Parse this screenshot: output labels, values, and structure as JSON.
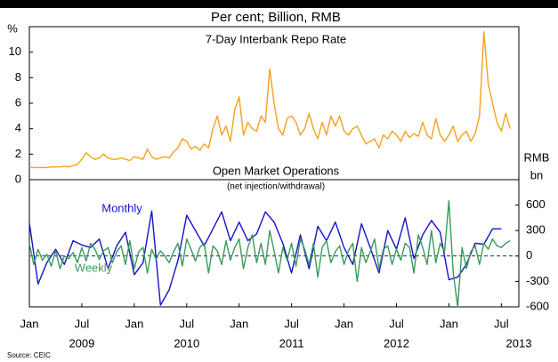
{
  "title": "Per cent; Billion, RMB",
  "source": "Source: CEIC",
  "chart_data": [
    {
      "type": "line",
      "title": "7-Day Interbank Repo Rate",
      "y_label": "%",
      "xlim": [
        0,
        56
      ],
      "ylim": [
        0,
        12
      ],
      "yticks": [
        0,
        2,
        4,
        6,
        8,
        10
      ],
      "color": "#f5a11f",
      "x": [
        0,
        0.5,
        1,
        1.5,
        2,
        2.5,
        3,
        3.5,
        4,
        4.5,
        5,
        5.5,
        6,
        6.5,
        7,
        7.5,
        8,
        8.5,
        9,
        9.5,
        10,
        10.5,
        11,
        11.5,
        12,
        12.5,
        13,
        13.5,
        14,
        14.5,
        15,
        15.5,
        16,
        16.5,
        17,
        17.5,
        18,
        18.5,
        19,
        19.5,
        20,
        20.5,
        21,
        21.5,
        22,
        22.5,
        23,
        23.5,
        24,
        24.5,
        25,
        25.5,
        26,
        26.5,
        27,
        27.5,
        28,
        28.5,
        29,
        29.5,
        30,
        30.5,
        31,
        31.5,
        32,
        32.5,
        33,
        33.5,
        34,
        34.5,
        35,
        35.5,
        36,
        36.5,
        37,
        37.5,
        38,
        38.5,
        39,
        39.5,
        40,
        40.5,
        41,
        41.5,
        42,
        42.5,
        43,
        43.5,
        44,
        44.5,
        45,
        45.5,
        46,
        46.5,
        47,
        47.5,
        48,
        48.5,
        49,
        49.5,
        50,
        50.5,
        51,
        51.5,
        52,
        52.5,
        53,
        53.5,
        54,
        54.5,
        55
      ],
      "values": [
        1.0,
        0.95,
        0.95,
        0.95,
        0.95,
        1.0,
        1.0,
        1.0,
        1.05,
        1.0,
        1.1,
        1.2,
        1.6,
        2.1,
        1.8,
        1.6,
        1.7,
        2.0,
        1.7,
        1.6,
        1.6,
        1.7,
        1.6,
        1.5,
        1.8,
        1.7,
        1.6,
        2.4,
        1.8,
        1.6,
        1.7,
        1.8,
        1.7,
        2.2,
        2.5,
        3.2,
        3.0,
        2.4,
        2.6,
        2.3,
        2.8,
        2.5,
        4.0,
        5.0,
        3.5,
        4.2,
        3.0,
        5.5,
        6.5,
        3.5,
        4.5,
        4.0,
        3.8,
        5.0,
        4.5,
        8.7,
        6.0,
        4.0,
        3.5,
        4.8,
        5.0,
        4.5,
        3.5,
        4.0,
        5.2,
        4.0,
        3.2,
        4.5,
        3.5,
        5.0,
        4.2,
        5.0,
        3.8,
        3.5,
        4.0,
        4.2,
        3.5,
        2.8,
        3.0,
        3.2,
        2.5,
        3.5,
        3.2,
        3.8,
        3.5,
        3.0,
        3.8,
        3.3,
        3.6,
        3.4,
        4.5,
        3.5,
        3.2,
        4.8,
        3.5,
        3.0,
        3.5,
        4.2,
        3.0,
        3.5,
        3.8,
        3.0,
        3.6,
        5.0,
        11.6,
        7.5,
        6.0,
        4.5,
        3.8,
        5.2,
        4.0
      ]
    },
    {
      "type": "line",
      "title": "Open Market Operations",
      "subtitle": "(net injection/withdrawal)",
      "y_label_lines": [
        "RMB",
        "bn"
      ],
      "xlim": [
        0,
        56
      ],
      "xticks": [
        {
          "value": 0,
          "label": "Jan"
        },
        {
          "value": 6,
          "label": "Jul"
        },
        {
          "value": 12,
          "label": "Jan"
        },
        {
          "value": 18,
          "label": "Jul"
        },
        {
          "value": 24,
          "label": "Jan"
        },
        {
          "value": 30,
          "label": "Jul"
        },
        {
          "value": 36,
          "label": "Jan"
        },
        {
          "value": 42,
          "label": "Jul"
        },
        {
          "value": 48,
          "label": "Jan"
        },
        {
          "value": 54,
          "label": "Jul"
        }
      ],
      "year_ticks": [
        {
          "value": 6,
          "label": "2009"
        },
        {
          "value": 18,
          "label": "2010"
        },
        {
          "value": 30,
          "label": "2011"
        },
        {
          "value": 42,
          "label": "2012"
        },
        {
          "value": 56,
          "label": "2013"
        }
      ],
      "ylim": [
        -600,
        900
      ],
      "yticks": [
        600,
        300,
        0,
        -300,
        -600
      ],
      "series": [
        {
          "name": "Monthly",
          "color": "#1414c8",
          "x": [
            0,
            1,
            2,
            3,
            4,
            5,
            6,
            7,
            8,
            9,
            10,
            11,
            12,
            13,
            14,
            15,
            16,
            17,
            18,
            19,
            20,
            21,
            22,
            23,
            24,
            25,
            26,
            27,
            28,
            29,
            30,
            31,
            32,
            33,
            34,
            35,
            36,
            37,
            38,
            39,
            40,
            41,
            42,
            43,
            44,
            45,
            46,
            47,
            48,
            49,
            50,
            51,
            52,
            53,
            54
          ],
          "values": [
            390,
            -330,
            -80,
            80,
            -100,
            180,
            130,
            100,
            200,
            -150,
            120,
            280,
            -220,
            -80,
            530,
            -580,
            -400,
            -50,
            480,
            300,
            120,
            320,
            520,
            180,
            400,
            180,
            260,
            520,
            400,
            150,
            -200,
            250,
            -150,
            350,
            180,
            400,
            100,
            -100,
            380,
            100,
            -200,
            300,
            80,
            450,
            -30,
            250,
            420,
            280,
            -280,
            -250,
            -100,
            150,
            140,
            320,
            320
          ]
        },
        {
          "name": "Weekly",
          "color": "#3a9a5a",
          "x": [
            0,
            0.5,
            1,
            1.5,
            2,
            2.5,
            3,
            3.5,
            4,
            4.5,
            5,
            5.5,
            6,
            6.5,
            7,
            7.5,
            8,
            8.5,
            9,
            9.5,
            10,
            10.5,
            11,
            11.5,
            12,
            12.5,
            13,
            13.5,
            14,
            14.5,
            15,
            15.5,
            16,
            16.5,
            17,
            17.5,
            18,
            18.5,
            19,
            19.5,
            20,
            20.5,
            21,
            21.5,
            22,
            22.5,
            23,
            23.5,
            24,
            24.5,
            25,
            25.5,
            26,
            26.5,
            27,
            27.5,
            28,
            28.5,
            29,
            29.5,
            30,
            30.5,
            31,
            31.5,
            32,
            32.5,
            33,
            33.5,
            34,
            34.5,
            35,
            35.5,
            36,
            36.5,
            37,
            37.5,
            38,
            38.5,
            39,
            39.5,
            40,
            40.5,
            41,
            41.5,
            42,
            42.5,
            43,
            43.5,
            44,
            44.5,
            45,
            45.5,
            46,
            46.5,
            47,
            47.5,
            48,
            48.5,
            49,
            49.5,
            50,
            50.5,
            51,
            51.5,
            52,
            52.5,
            53,
            53.5,
            54,
            54.5,
            55
          ],
          "values": [
            150,
            -100,
            80,
            -50,
            20,
            -120,
            60,
            -150,
            0,
            -30,
            40,
            -80,
            100,
            -60,
            150,
            80,
            -40,
            60,
            100,
            -80,
            50,
            120,
            -100,
            180,
            -150,
            50,
            100,
            -200,
            80,
            -40,
            60,
            0,
            -80,
            50,
            150,
            -120,
            200,
            80,
            -60,
            100,
            150,
            -200,
            120,
            60,
            -100,
            180,
            -50,
            100,
            200,
            -150,
            100,
            250,
            -80,
            150,
            -100,
            300,
            60,
            -200,
            100,
            -50,
            150,
            -120,
            200,
            80,
            -100,
            150,
            -250,
            100,
            180,
            -80,
            50,
            120,
            -100,
            60,
            150,
            -300,
            100,
            -80,
            50,
            200,
            -150,
            80,
            120,
            -100,
            80,
            -50,
            150,
            100,
            -200,
            250,
            100,
            -100,
            300,
            -80,
            150,
            50,
            650,
            -200,
            -600,
            100,
            -150,
            50,
            120,
            -100,
            150,
            80,
            200,
            120,
            100,
            150,
            180
          ]
        }
      ]
    }
  ]
}
